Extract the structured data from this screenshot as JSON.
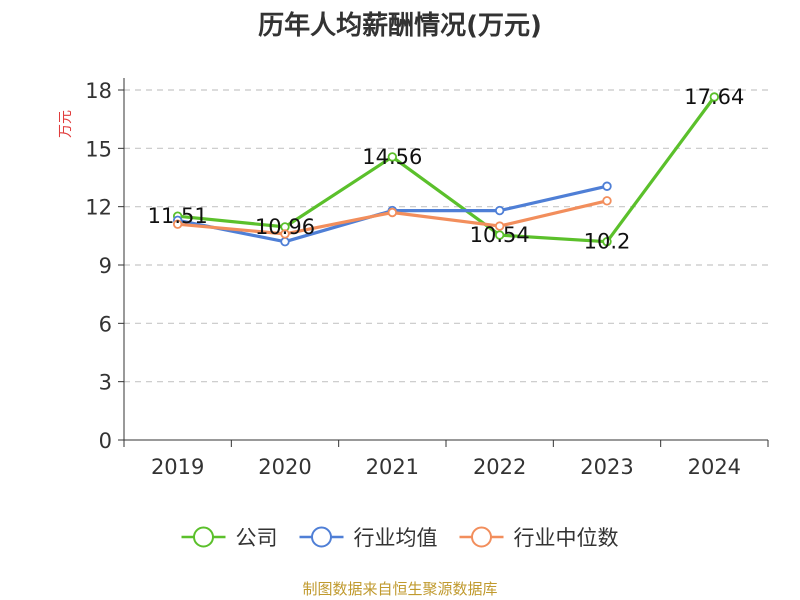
{
  "chart_data": {
    "type": "line",
    "title": "历年人均薪酬情况(万元)",
    "ylabel": "万元",
    "categories": [
      "2019",
      "2020",
      "2021",
      "2022",
      "2023",
      "2024"
    ],
    "ylim": [
      0,
      18
    ],
    "yticks": [
      0,
      3,
      6,
      9,
      12,
      15,
      18
    ],
    "grid": true,
    "legend_position": "bottom",
    "series": [
      {
        "name": "公司",
        "color": "#5bc02b",
        "values": [
          11.51,
          10.96,
          14.56,
          10.54,
          10.2,
          17.64
        ],
        "labels": [
          "11.51",
          "10.96",
          "14.56",
          "10.54",
          "10.2",
          "17.64"
        ]
      },
      {
        "name": "行业均值",
        "color": "#4f7fd6",
        "values": [
          11.3,
          10.2,
          11.8,
          11.8,
          13.05,
          null
        ]
      },
      {
        "name": "行业中位数",
        "color": "#f28e5c",
        "values": [
          11.1,
          10.6,
          11.7,
          11.0,
          12.3,
          null
        ]
      }
    ],
    "source": "制图数据来自恒生聚源数据库"
  }
}
